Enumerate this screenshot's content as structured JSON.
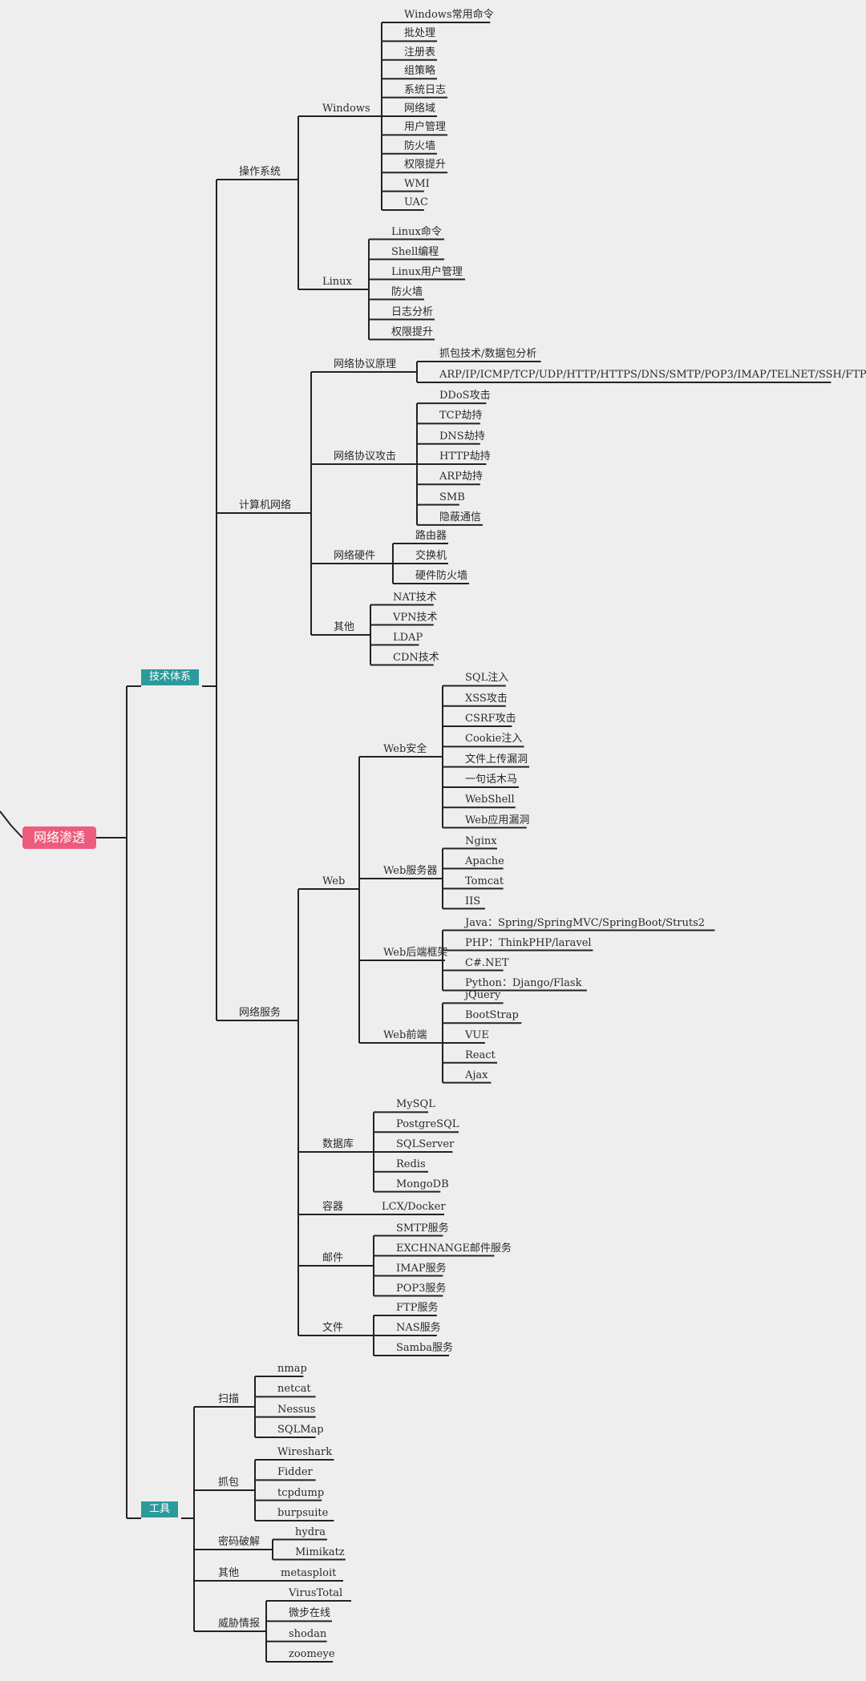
{
  "colors": {
    "line": "#222222",
    "root": "#ee5c7d",
    "category": "#2b9a9a",
    "background": "#eeeeee"
  },
  "root": "网络渗透",
  "categories": [
    {
      "label": "技术体系",
      "children": [
        {
          "label": "操作系统",
          "children": [
            {
              "label": "Windows",
              "children": [
                "Windows常用命令",
                "批处理",
                "注册表",
                "组策略",
                "系统日志",
                "网络域",
                "用户管理",
                "防火墙",
                "权限提升",
                "WMI",
                "UAC"
              ]
            },
            {
              "label": "Linux",
              "children": [
                "Linux命令",
                "Shell编程",
                "Linux用户管理",
                "防火墙",
                "日志分析",
                "权限提升"
              ]
            }
          ]
        },
        {
          "label": "计算机网络",
          "children": [
            {
              "label": "网络协议原理",
              "children": [
                "抓包技术/数据包分析",
                "ARP/IP/ICMP/TCP/UDP/HTTP/HTTPS/DNS/SMTP/POP3/IMAP/TELNET/SSH/FTP"
              ]
            },
            {
              "label": "网络协议攻击",
              "children": [
                "DDoS攻击",
                "TCP劫持",
                "DNS劫持",
                "HTTP劫持",
                "ARP劫持",
                "SMB",
                "隐蔽通信"
              ]
            },
            {
              "label": "网络硬件",
              "children": [
                "路由器",
                "交换机",
                "硬件防火墙"
              ]
            },
            {
              "label": "其他",
              "children": [
                "NAT技术",
                "VPN技术",
                "LDAP",
                "CDN技术"
              ]
            }
          ]
        },
        {
          "label": "网络服务",
          "children": [
            {
              "label": "Web",
              "children": [
                {
                  "label": "Web安全",
                  "children": [
                    "SQL注入",
                    "XSS攻击",
                    "CSRF攻击",
                    "Cookie注入",
                    "文件上传漏洞",
                    "一句话木马",
                    "WebShell",
                    "Web应用漏洞"
                  ]
                },
                {
                  "label": "Web服务器",
                  "children": [
                    "Nginx",
                    "Apache",
                    "Tomcat",
                    "IIS"
                  ]
                },
                {
                  "label": "Web后端框架",
                  "children": [
                    "Java：Spring/SpringMVC/SpringBoot/Struts2",
                    "PHP：ThinkPHP/laravel",
                    "C#.NET",
                    "Python：Django/Flask"
                  ]
                },
                {
                  "label": "Web前端",
                  "children": [
                    "jQuery",
                    "BootStrap",
                    "VUE",
                    "React",
                    "Ajax"
                  ]
                }
              ]
            },
            {
              "label": "数据库",
              "children": [
                "MySQL",
                "PostgreSQL",
                "SQLServer",
                "Redis",
                "MongoDB"
              ]
            },
            {
              "label": "容器",
              "children": [
                "LCX/Docker"
              ]
            },
            {
              "label": "邮件",
              "children": [
                "SMTP服务",
                "EXCHNANGE邮件服务",
                "IMAP服务",
                "POP3服务"
              ]
            },
            {
              "label": "文件",
              "children": [
                "FTP服务",
                "NAS服务",
                "Samba服务"
              ]
            }
          ]
        }
      ]
    },
    {
      "label": "工具",
      "children": [
        {
          "label": "扫描",
          "children": [
            "nmap",
            "netcat",
            "Nessus",
            "SQLMap"
          ]
        },
        {
          "label": "抓包",
          "children": [
            "Wireshark",
            "Fidder",
            "tcpdump",
            "burpsuite"
          ]
        },
        {
          "label": "密码破解",
          "children": [
            "hydra",
            "Mimikatz"
          ]
        },
        {
          "label": "其他",
          "children": [
            "metasploit"
          ]
        },
        {
          "label": "威胁情报",
          "children": [
            "VirusTotal",
            "微步在线",
            "shodan",
            "zoomeye"
          ]
        }
      ]
    }
  ]
}
